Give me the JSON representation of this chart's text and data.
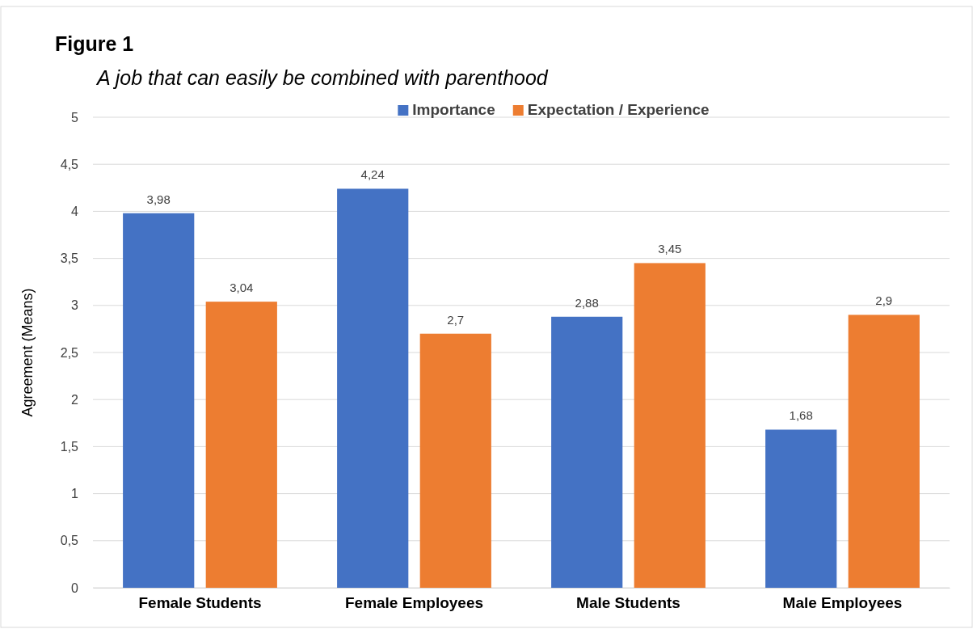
{
  "chart_data": {
    "type": "bar",
    "title": "Figure 1",
    "subtitle": "A job that can easily be combined with parenthood",
    "ylabel": "Agreement (Means)",
    "categories": [
      "Female Students",
      "Female Employees",
      "Male Students",
      "Male Employees"
    ],
    "series": [
      {
        "name": "Importance",
        "color": "#4472c4",
        "values": [
          3.98,
          4.24,
          2.88,
          1.68
        ],
        "value_labels": [
          "3,98",
          "4,24",
          "2,88",
          "1,68"
        ]
      },
      {
        "name": "Expectation / Experience",
        "color": "#ed7d31",
        "values": [
          3.04,
          2.7,
          3.45,
          2.9
        ],
        "value_labels": [
          "3,04",
          "2,7",
          "3,45",
          "2,9"
        ]
      }
    ],
    "ylim": [
      0,
      5
    ],
    "yticks": [
      0,
      {
        "value": 0.5,
        "label": "0,5"
      },
      1,
      {
        "value": 1.5,
        "label": "1,5"
      },
      2,
      {
        "value": 2.5,
        "label": "2,5"
      },
      3,
      {
        "value": 3.5,
        "label": "3,5"
      },
      4,
      {
        "value": 4.5,
        "label": "4,5"
      },
      5
    ],
    "grid": "y",
    "legend": "top"
  }
}
